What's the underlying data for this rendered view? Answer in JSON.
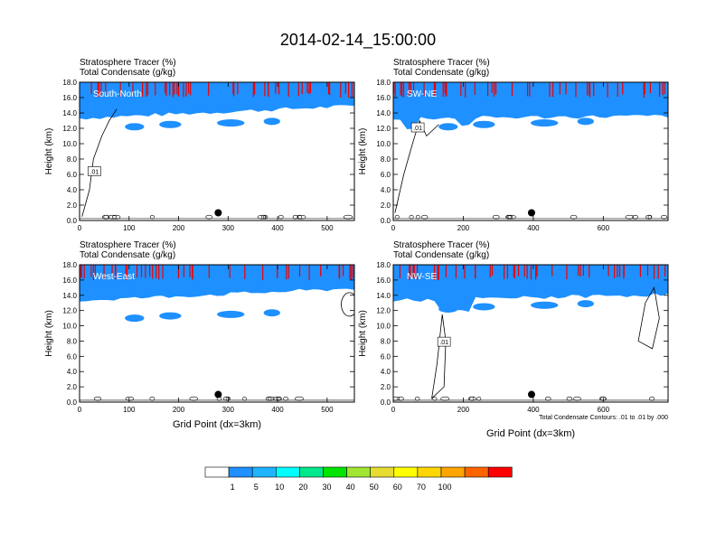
{
  "title": "2014-02-14_15:00:00",
  "colors": {
    "background": "#ffffff",
    "frame": "#000000",
    "contour": "#000000",
    "marker": "#000000",
    "panel_label": "#ffffff"
  },
  "chart_data": [
    {
      "type": "heatmap",
      "label": "South-North",
      "title_line1": "Stratosphere Tracer   (%)",
      "title_line2": "Total Condensate   (g/kg)",
      "ylabel": "Height (km)",
      "xlabel": "",
      "xlim": [
        0,
        555
      ],
      "ylim": [
        0,
        18
      ],
      "xticks": [
        0,
        100,
        200,
        300,
        400,
        500
      ],
      "yticks": [
        "0.0",
        "2.0",
        "4.0",
        "6.0",
        "8.0",
        "10.0",
        "12.0",
        "14.0",
        "16.0",
        "18.0"
      ],
      "marker": {
        "x": 280,
        "y": 1.0
      },
      "contour_label": {
        "text": ".01",
        "x": 30,
        "y": 6.3
      },
      "footnote": ""
    },
    {
      "type": "heatmap",
      "label": "SW-NE",
      "title_line1": "Stratosphere Tracer   (%)",
      "title_line2": "Total Condensate   (g/kg)",
      "ylabel": "Height (km)",
      "xlabel": "",
      "xlim": [
        0,
        785
      ],
      "ylim": [
        0,
        18
      ],
      "xticks": [
        0,
        200,
        400,
        600
      ],
      "yticks": [
        "0.0",
        "2.0",
        "4.0",
        "6.0",
        "8.0",
        "10.0",
        "12.0",
        "14.0",
        "16.0",
        "18.0"
      ],
      "marker": {
        "x": 395,
        "y": 1.0
      },
      "contour_label": {
        "text": ".01",
        "x": 70,
        "y": 12.0
      },
      "footnote": ""
    },
    {
      "type": "heatmap",
      "label": "West-East",
      "title_line1": "Stratosphere Tracer   (%)",
      "title_line2": "Total Condensate   (g/kg)",
      "ylabel": "Height (km)",
      "xlabel": "Grid Point (dx=3km)",
      "xlim": [
        0,
        555
      ],
      "ylim": [
        0,
        18
      ],
      "xticks": [
        0,
        100,
        200,
        300,
        400,
        500
      ],
      "yticks": [
        "0.0",
        "2.0",
        "4.0",
        "6.0",
        "8.0",
        "10.0",
        "12.0",
        "14.0",
        "16.0",
        "18.0"
      ],
      "marker": {
        "x": 280,
        "y": 1.0
      },
      "contour_label": null,
      "footnote": ""
    },
    {
      "type": "heatmap",
      "label": "NW-SE",
      "title_line1": "Stratosphere Tracer   (%)",
      "title_line2": "Total Condensate   (g/kg)",
      "ylabel": "Height (km)",
      "xlabel": "Grid Point (dx=3km)",
      "xlim": [
        0,
        785
      ],
      "ylim": [
        0,
        18
      ],
      "xticks": [
        0,
        200,
        400,
        600
      ],
      "yticks": [
        "0.0",
        "2.0",
        "4.0",
        "6.0",
        "8.0",
        "10.0",
        "12.0",
        "14.0",
        "16.0",
        "18.0"
      ],
      "marker": {
        "x": 395,
        "y": 1.0
      },
      "contour_label": {
        "text": ".01",
        "x": 145,
        "y": 7.8
      },
      "footnote": "Total Condensate Contours: .01 to .01 by .000"
    }
  ],
  "colorbar": {
    "levels": [
      "1",
      "5",
      "10",
      "20",
      "30",
      "40",
      "50",
      "60",
      "70",
      "100"
    ],
    "colors": [
      "#ffffff",
      "#1e90ff",
      "#1eb4ff",
      "#00ffff",
      "#00e88c",
      "#00e400",
      "#a0e632",
      "#e6dc32",
      "#ffff00",
      "#ffd700",
      "#ffa500",
      "#ff6400",
      "#ff0000"
    ]
  }
}
